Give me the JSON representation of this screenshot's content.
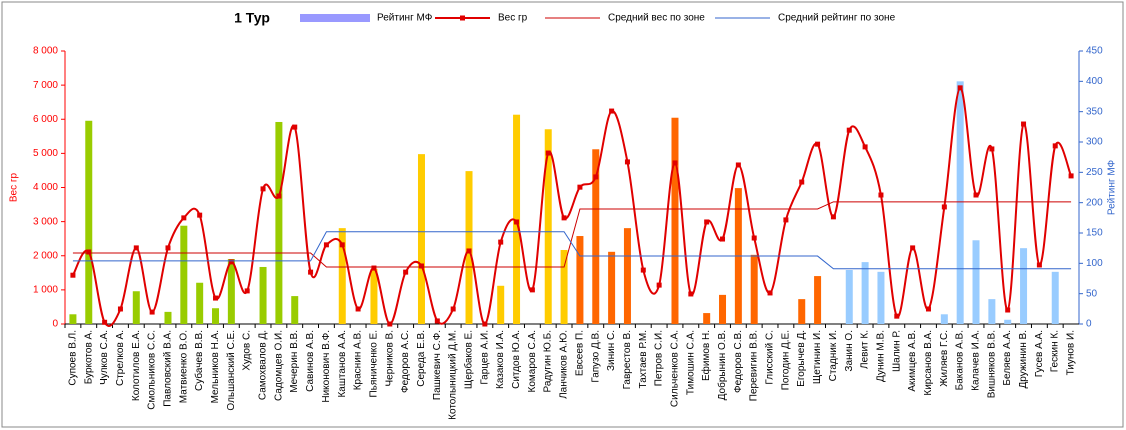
{
  "chart_data": {
    "type": "combo",
    "title": "1 Тур",
    "y_label": "Вес гр",
    "y2_label": "Рейтинг МФ",
    "categories": [
      "Супоев В.Л.",
      "Буркотов А.",
      "Чулков С.А.",
      "Стрелков А.",
      "Колотилов Е.А.",
      "Смольников С.С.",
      "Павловский В.А.",
      "Матвиенко В.О.",
      "Субачев В.В.",
      "Мельников Н.А.",
      "Ольшанский С.Е.",
      "Худов С.",
      "Самохвалов Д.",
      "Садомцев О.И.",
      "Мечерин В.В.",
      "Савинов А.В.",
      "Никонович В.Ф.",
      "Каштанов А.А.",
      "Краснин А.В.",
      "Пьяниченко Е.",
      "Черников В.",
      "Федоров А.С.",
      "Середа Е.В.",
      "Пашкевич С.Ф.",
      "Котолыницкий Д.М.",
      "Щербаков Е.",
      "Гарцев А.И.",
      "Казаков И.А.",
      "Ситдов Ю.А.",
      "Комаров С.А.",
      "Радугин Ю.Б.",
      "Ланчиков А.Ю.",
      "Евсеев П.",
      "Гапузо Д.В.",
      "Зинин С.",
      "Гаврестов В.",
      "Тахтаев Р.М.",
      "Петров С.И.",
      "Сильченков С.А.",
      "Тимошин С.А.",
      "Ефимов Н.",
      "Добрынин О.В.",
      "Федоров С.В.",
      "Перевигин В.В.",
      "Глисский С.",
      "Погодин Д.Е.",
      "Егорычев Д.",
      "Щетинин И.",
      "Стадник И.",
      "Занин О.",
      "Левит К.",
      "Дунин М.В.",
      "Шалин Р.",
      "Акимцев А.В.",
      "Кирсанов В.А.",
      "Жиляев Г.С.",
      "Баканов А.В.",
      "Калачев И.А.",
      "Вишняков В.В.",
      "Беляев А.А.",
      "Дружинин В.",
      "Гусев А.А.",
      "Гескин К.",
      "Тиунов И."
    ],
    "ylim": [
      0,
      8000
    ],
    "yticks": [
      0,
      {
        "value": 1000,
        "label": "1 000"
      },
      {
        "value": 2000,
        "label": "2 000"
      },
      {
        "value": 3000,
        "label": "3 000"
      },
      {
        "value": 4000,
        "label": "4 000"
      },
      {
        "value": 5000,
        "label": "5 000"
      },
      {
        "value": 6000,
        "label": "6 000"
      },
      {
        "value": 7000,
        "label": "7 000"
      },
      {
        "value": 8000,
        "label": "8 000"
      }
    ],
    "y2lim": [
      0,
      450
    ],
    "y2ticks": [
      0,
      50,
      100,
      150,
      200,
      250,
      300,
      350,
      400,
      450
    ],
    "y_color": "#ff0000",
    "y2_color": "#3366cc",
    "series": [
      {
        "name": "Рейтинг МФ",
        "type": "bar",
        "axis": "y2",
        "color": "#9999ff",
        "bar_colors": [
          "#99cc00",
          "#99cc00",
          "#99cc00",
          "#99cc00",
          "#99cc00",
          "#99cc00",
          "#99cc00",
          "#99cc00",
          "#99cc00",
          "#99cc00",
          "#99cc00",
          "#99cc00",
          "#99cc00",
          "#99cc00",
          "#99cc00",
          "#99cc00",
          "#ffcc00",
          "#ffcc00",
          "#ffcc00",
          "#ffcc00",
          "#ffcc00",
          "#ffcc00",
          "#ffcc00",
          "#ffcc00",
          "#ffcc00",
          "#ffcc00",
          "#ffcc00",
          "#ffcc00",
          "#ffcc00",
          "#ffcc00",
          "#ffcc00",
          "#ffcc00",
          "#ff6600",
          "#ff6600",
          "#ff6600",
          "#ff6600",
          "#ff6600",
          "#ff6600",
          "#ff6600",
          "#ff6600",
          "#ff6600",
          "#ff6600",
          "#ff6600",
          "#ff6600",
          "#ff6600",
          "#ff6600",
          "#ff6600",
          "#ff6600",
          "#99ccff",
          "#99ccff",
          "#99ccff",
          "#99ccff",
          "#99ccff",
          "#99ccff",
          "#99ccff",
          "#99ccff",
          "#99ccff",
          "#99ccff",
          "#99ccff",
          "#99ccff",
          "#99ccff",
          "#99ccff",
          "#99ccff",
          "#99ccff"
        ],
        "values": [
          16,
          335,
          0,
          0,
          54,
          0,
          20,
          162,
          68,
          26,
          107,
          0,
          94,
          333,
          46,
          0,
          0,
          158,
          0,
          91,
          0,
          0,
          280,
          0,
          0,
          252,
          0,
          63,
          345,
          0,
          321,
          122,
          145,
          288,
          119,
          158,
          0,
          0,
          340,
          0,
          18,
          48,
          224,
          114,
          0,
          0,
          41,
          79,
          0,
          89,
          102,
          86,
          0,
          0,
          0,
          16,
          400,
          138,
          41,
          7,
          125,
          0,
          86,
          0
        ]
      },
      {
        "name": "Вес гр",
        "type": "smooth_line",
        "color": "#e00000",
        "marker": true,
        "values": [
          1430,
          2110,
          50,
          440,
          2230,
          350,
          2230,
          3110,
          3190,
          760,
          1820,
          970,
          3960,
          3750,
          5770,
          1520,
          2320,
          2320,
          440,
          1640,
          0,
          1520,
          1700,
          90,
          440,
          2140,
          0,
          2400,
          2990,
          1000,
          5010,
          3110,
          4010,
          4310,
          6240,
          4750,
          1580,
          1140,
          4720,
          880,
          2990,
          2490,
          4660,
          2520,
          910,
          3050,
          4160,
          5270,
          3140,
          5680,
          5190,
          3780,
          230,
          2230,
          440,
          3430,
          6920,
          3780,
          5130,
          410,
          5860,
          1730,
          5220,
          4340
        ]
      },
      {
        "name": "Средний вес по зоне",
        "type": "line",
        "color": "#cc0000",
        "values": [
          2080,
          2080,
          2080,
          2080,
          2080,
          2080,
          2080,
          2080,
          2080,
          2080,
          2080,
          2080,
          2080,
          2080,
          2080,
          2080,
          1670,
          1670,
          1670,
          1670,
          1670,
          1670,
          1670,
          1670,
          1670,
          1670,
          1670,
          1670,
          1670,
          1670,
          1670,
          1670,
          3370,
          3370,
          3370,
          3370,
          3370,
          3370,
          3370,
          3370,
          3370,
          3370,
          3370,
          3370,
          3370,
          3370,
          3370,
          3370,
          3580,
          3580,
          3580,
          3580,
          3580,
          3580,
          3580,
          3580,
          3580,
          3580,
          3580,
          3580,
          3580,
          3580,
          3580,
          3580
        ]
      },
      {
        "name": "Средний рейтинг по зоне",
        "type": "line",
        "axis": "y2",
        "color": "#3366cc",
        "values": [
          104,
          104,
          104,
          104,
          104,
          104,
          104,
          104,
          104,
          104,
          104,
          104,
          104,
          104,
          104,
          104,
          152,
          152,
          152,
          152,
          152,
          152,
          152,
          152,
          152,
          152,
          152,
          152,
          152,
          152,
          152,
          152,
          112,
          112,
          112,
          112,
          112,
          112,
          112,
          112,
          112,
          112,
          112,
          112,
          112,
          112,
          112,
          112,
          91,
          91,
          91,
          91,
          91,
          91,
          91,
          91,
          91,
          91,
          91,
          91,
          91,
          91,
          91,
          91
        ]
      }
    ]
  }
}
